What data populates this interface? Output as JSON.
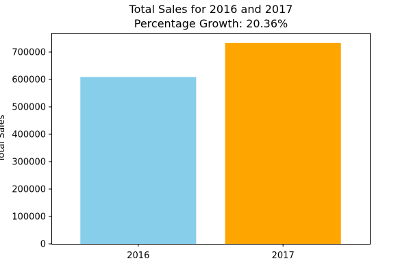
{
  "chart_data": {
    "type": "bar",
    "title": "Total Sales for 2016 and 2017",
    "subtitle": "Percentage Growth: 20.36%",
    "xlabel": "",
    "ylabel": "Total Sales",
    "categories": [
      "2016",
      "2017"
    ],
    "values": [
      609000,
      733000
    ],
    "bar_colors": [
      "#87ceeb",
      "#ffa500"
    ],
    "ylim": [
      0,
      770000
    ],
    "yticks": [
      0,
      100000,
      200000,
      300000,
      400000,
      500000,
      600000,
      700000
    ],
    "grid": false,
    "legend": "none"
  }
}
